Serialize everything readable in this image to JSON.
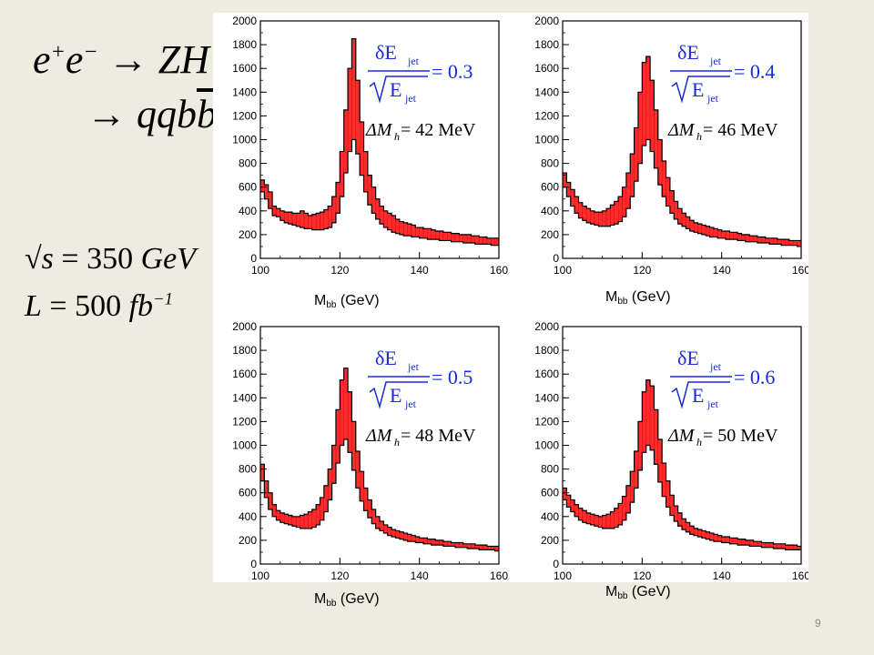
{
  "slide": {
    "process_line1": {
      "lhs": "e",
      "sup_plus": "+",
      "rhs_e": "e",
      "sup_minus": "−",
      "arrow": "→",
      "product": "ZH"
    },
    "process_line2": {
      "arrow": "→",
      "product": "qqb",
      "product_bar": "b"
    },
    "sqrt_s": {
      "symbol": "√s",
      "equals": " = 350 ",
      "unit": "GeV"
    },
    "lumi": {
      "symbol": "L",
      "equals": " = 500 ",
      "unit": "fb",
      "exp": "−1"
    },
    "page_number": "9"
  },
  "chart_data": [
    {
      "type": "bar",
      "panel": "top-left",
      "xlabel_main": "M",
      "xlabel_sub": "bb",
      "xlabel_unit": " (GeV)",
      "xlim": [
        100,
        160
      ],
      "ylim": [
        0,
        2000
      ],
      "xticks": [
        "100",
        "120",
        "140",
        "160"
      ],
      "yticks": [
        "0",
        "200",
        "400",
        "600",
        "800",
        "1000",
        "1200",
        "1400",
        "1600",
        "1800",
        "2000"
      ],
      "annotation": {
        "frac_num": "δE",
        "frac_den": "E",
        "sub": "jet",
        "value": " = 0.3",
        "delta_label": "ΔM",
        "delta_sub": "h",
        "delta_value": " = 42 MeV"
      },
      "bin_width": 1,
      "x_start": 100,
      "upper": [
        660,
        620,
        560,
        440,
        420,
        400,
        390,
        390,
        380,
        380,
        400,
        380,
        360,
        370,
        380,
        390,
        410,
        440,
        520,
        640,
        900,
        1250,
        1600,
        1850,
        1500,
        1150,
        900,
        700,
        600,
        500,
        440,
        400,
        380,
        360,
        330,
        310,
        300,
        290,
        280,
        260,
        260,
        250,
        250,
        240,
        230,
        230,
        220,
        220,
        210,
        210,
        200,
        200,
        200,
        190,
        190,
        180,
        180,
        170,
        170,
        170
      ],
      "lower": [
        560,
        500,
        420,
        360,
        350,
        320,
        300,
        290,
        280,
        270,
        260,
        250,
        250,
        240,
        240,
        240,
        250,
        260,
        300,
        380,
        520,
        720,
        900,
        1000,
        880,
        700,
        560,
        450,
        380,
        330,
        290,
        260,
        240,
        220,
        210,
        200,
        190,
        190,
        180,
        180,
        170,
        170,
        160,
        160,
        160,
        150,
        150,
        150,
        140,
        140,
        140,
        130,
        130,
        130,
        120,
        120,
        120,
        120,
        110,
        110
      ]
    },
    {
      "type": "bar",
      "panel": "top-right",
      "xlabel_main": "M",
      "xlabel_sub": "bb",
      "xlabel_unit": " (GeV)",
      "xlim": [
        100,
        160
      ],
      "ylim": [
        0,
        2000
      ],
      "xticks": [
        "100",
        "120",
        "140",
        "160"
      ],
      "yticks": [
        "0",
        "200",
        "400",
        "600",
        "800",
        "1000",
        "1200",
        "1400",
        "1600",
        "1800",
        "2000"
      ],
      "annotation": {
        "frac_num": "δE",
        "frac_den": "E",
        "sub": "jet",
        "value": " = 0.4",
        "delta_label": "ΔM",
        "delta_sub": "h",
        "delta_value": " = 46 MeV"
      },
      "bin_width": 1,
      "x_start": 100,
      "upper": [
        720,
        640,
        580,
        520,
        470,
        440,
        420,
        400,
        390,
        390,
        400,
        420,
        450,
        480,
        520,
        600,
        720,
        880,
        1100,
        1400,
        1650,
        1700,
        1500,
        1250,
        1000,
        820,
        680,
        570,
        480,
        420,
        380,
        350,
        320,
        300,
        290,
        280,
        270,
        260,
        250,
        240,
        230,
        230,
        220,
        220,
        210,
        200,
        200,
        190,
        190,
        180,
        180,
        170,
        170,
        170,
        160,
        160,
        160,
        150,
        150,
        150
      ],
      "lower": [
        600,
        520,
        440,
        380,
        340,
        320,
        300,
        290,
        280,
        270,
        270,
        270,
        280,
        290,
        310,
        350,
        420,
        520,
        650,
        800,
        950,
        1000,
        900,
        760,
        620,
        520,
        440,
        380,
        330,
        290,
        270,
        250,
        230,
        220,
        210,
        200,
        190,
        180,
        180,
        170,
        170,
        160,
        160,
        160,
        150,
        150,
        140,
        140,
        140,
        130,
        130,
        130,
        120,
        120,
        120,
        110,
        110,
        110,
        110,
        100
      ]
    },
    {
      "type": "bar",
      "panel": "bottom-left",
      "xlabel_main": "M",
      "xlabel_sub": "bb",
      "xlabel_unit": " (GeV)",
      "xlim": [
        100,
        160
      ],
      "ylim": [
        0,
        2000
      ],
      "xticks": [
        "100",
        "120",
        "140",
        "160"
      ],
      "yticks": [
        "0",
        "200",
        "400",
        "600",
        "800",
        "1000",
        "1200",
        "1400",
        "1600",
        "1800",
        "2000"
      ],
      "annotation": {
        "frac_num": "δE",
        "frac_den": "E",
        "sub": "jet",
        "value": " = 0.5",
        "delta_label": "ΔM",
        "delta_sub": "h",
        "delta_value": " = 48 MeV"
      },
      "bin_width": 1,
      "x_start": 100,
      "upper": [
        840,
        700,
        600,
        500,
        450,
        430,
        420,
        410,
        400,
        400,
        410,
        420,
        440,
        460,
        500,
        560,
        660,
        800,
        1000,
        1300,
        1550,
        1650,
        1450,
        1200,
        950,
        780,
        640,
        540,
        460,
        400,
        360,
        330,
        310,
        290,
        280,
        270,
        260,
        250,
        240,
        230,
        220,
        220,
        210,
        210,
        200,
        200,
        190,
        190,
        180,
        180,
        180,
        170,
        170,
        170,
        160,
        160,
        160,
        150,
        150,
        150
      ],
      "lower": [
        700,
        560,
        460,
        400,
        370,
        350,
        340,
        330,
        320,
        310,
        300,
        300,
        300,
        310,
        330,
        370,
        440,
        540,
        680,
        850,
        1000,
        1050,
        940,
        790,
        640,
        530,
        450,
        390,
        340,
        300,
        280,
        260,
        240,
        230,
        220,
        210,
        200,
        190,
        190,
        180,
        180,
        170,
        170,
        160,
        160,
        160,
        150,
        150,
        150,
        140,
        140,
        140,
        130,
        130,
        130,
        120,
        120,
        120,
        120,
        110
      ]
    },
    {
      "type": "bar",
      "panel": "bottom-right",
      "xlabel_main": "M",
      "xlabel_sub": "bb",
      "xlabel_unit": " (GeV)",
      "xlim": [
        100,
        160
      ],
      "ylim": [
        0,
        2000
      ],
      "xticks": [
        "100",
        "120",
        "140",
        "160"
      ],
      "yticks": [
        "0",
        "200",
        "400",
        "600",
        "800",
        "1000",
        "1200",
        "1400",
        "1600",
        "1800",
        "2000"
      ],
      "annotation": {
        "frac_num": "δE",
        "frac_den": "E",
        "sub": "jet",
        "value": " = 0.6",
        "delta_label": "ΔM",
        "delta_sub": "h",
        "delta_value": " = 50 MeV"
      },
      "bin_width": 1,
      "x_start": 100,
      "upper": [
        640,
        580,
        540,
        500,
        470,
        450,
        430,
        420,
        410,
        400,
        410,
        420,
        440,
        470,
        510,
        570,
        660,
        780,
        950,
        1200,
        1450,
        1550,
        1500,
        1300,
        1050,
        850,
        700,
        580,
        490,
        430,
        380,
        350,
        320,
        300,
        290,
        280,
        270,
        260,
        250,
        240,
        230,
        230,
        220,
        220,
        210,
        210,
        200,
        200,
        190,
        190,
        180,
        180,
        180,
        170,
        170,
        170,
        160,
        160,
        160,
        150
      ],
      "lower": [
        540,
        480,
        440,
        400,
        370,
        350,
        340,
        330,
        320,
        310,
        300,
        300,
        300,
        310,
        330,
        370,
        430,
        520,
        640,
        790,
        940,
        1000,
        960,
        840,
        690,
        570,
        480,
        410,
        360,
        320,
        290,
        270,
        250,
        240,
        230,
        220,
        210,
        200,
        190,
        190,
        180,
        180,
        170,
        170,
        160,
        160,
        160,
        150,
        150,
        150,
        140,
        140,
        140,
        130,
        130,
        130,
        120,
        120,
        120,
        120
      ]
    }
  ]
}
